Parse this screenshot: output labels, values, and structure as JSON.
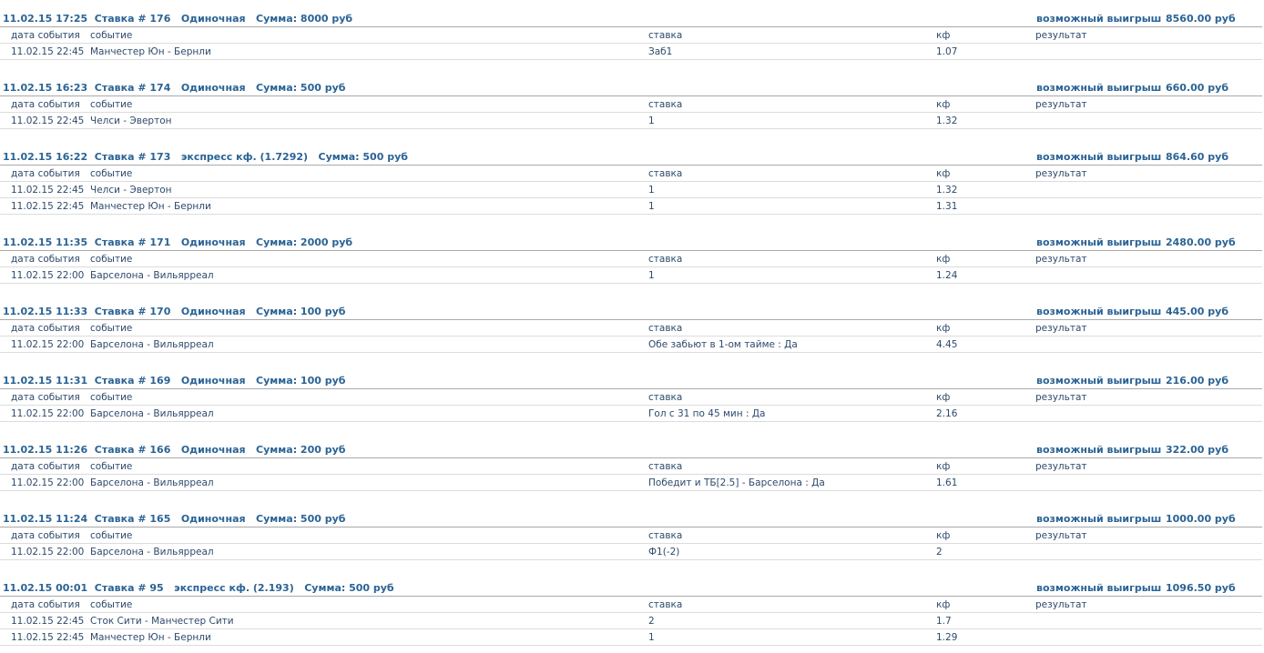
{
  "columns": [
    "дата события",
    "событие",
    "ставка",
    "кф",
    "результат"
  ],
  "win_label": "возможный выигрыш",
  "bets": [
    {
      "header": "11.02.15 17:25  Ставка # 176   Одиночная   Сумма: 8000 руб",
      "win": "8560.00 руб",
      "rows": [
        [
          "11.02.15 22:45",
          "Манчестер Юн - Бернли",
          "Заб1",
          "1.07",
          ""
        ]
      ]
    },
    {
      "header": "11.02.15 16:23  Ставка # 174   Одиночная   Сумма: 500 руб",
      "win": "660.00 руб",
      "rows": [
        [
          "11.02.15 22:45",
          "Челси - Эвертон",
          "1",
          "1.32",
          ""
        ]
      ]
    },
    {
      "header": "11.02.15 16:22  Ставка # 173   экспресс кф. (1.7292)   Сумма: 500 руб",
      "win": "864.60 руб",
      "rows": [
        [
          "11.02.15 22:45",
          "Челси - Эвертон",
          "1",
          "1.32",
          ""
        ],
        [
          "11.02.15 22:45",
          "Манчестер Юн - Бернли",
          "1",
          "1.31",
          ""
        ]
      ]
    },
    {
      "header": "11.02.15 11:35  Ставка # 171   Одиночная   Сумма: 2000 руб",
      "win": "2480.00 руб",
      "rows": [
        [
          "11.02.15 22:00",
          "Барселона - Вильярреал",
          "1",
          "1.24",
          ""
        ]
      ]
    },
    {
      "header": "11.02.15 11:33  Ставка # 170   Одиночная   Сумма: 100 руб",
      "win": "445.00 руб",
      "rows": [
        [
          "11.02.15 22:00",
          "Барселона - Вильярреал",
          "Обе забьют в 1-ом тайме : Да",
          "4.45",
          ""
        ]
      ]
    },
    {
      "header": "11.02.15 11:31  Ставка # 169   Одиночная   Сумма: 100 руб",
      "win": "216.00 руб",
      "rows": [
        [
          "11.02.15 22:00",
          "Барселона - Вильярреал",
          "Гол с 31 по 45 мин : Да",
          "2.16",
          ""
        ]
      ]
    },
    {
      "header": "11.02.15 11:26  Ставка # 166   Одиночная   Сумма: 200 руб",
      "win": "322.00 руб",
      "rows": [
        [
          "11.02.15 22:00",
          "Барселона - Вильярреал",
          "Победит и ТБ[2.5] - Барселона : Да",
          "1.61",
          ""
        ]
      ]
    },
    {
      "header": "11.02.15 11:24  Ставка # 165   Одиночная   Сумма: 500 руб",
      "win": "1000.00 руб",
      "rows": [
        [
          "11.02.15 22:00",
          "Барселона - Вильярреал",
          "Ф1(-2)",
          "2",
          ""
        ]
      ]
    },
    {
      "header": "11.02.15 00:01  Ставка # 95   экспресс кф. (2.193)   Сумма: 500 руб",
      "win": "1096.50 руб",
      "rows": [
        [
          "11.02.15 22:45",
          "Сток Сити - Манчестер Сити",
          "2",
          "1.7",
          ""
        ],
        [
          "11.02.15 22:45",
          "Манчестер Юн - Бернли",
          "1",
          "1.29",
          ""
        ]
      ]
    }
  ]
}
